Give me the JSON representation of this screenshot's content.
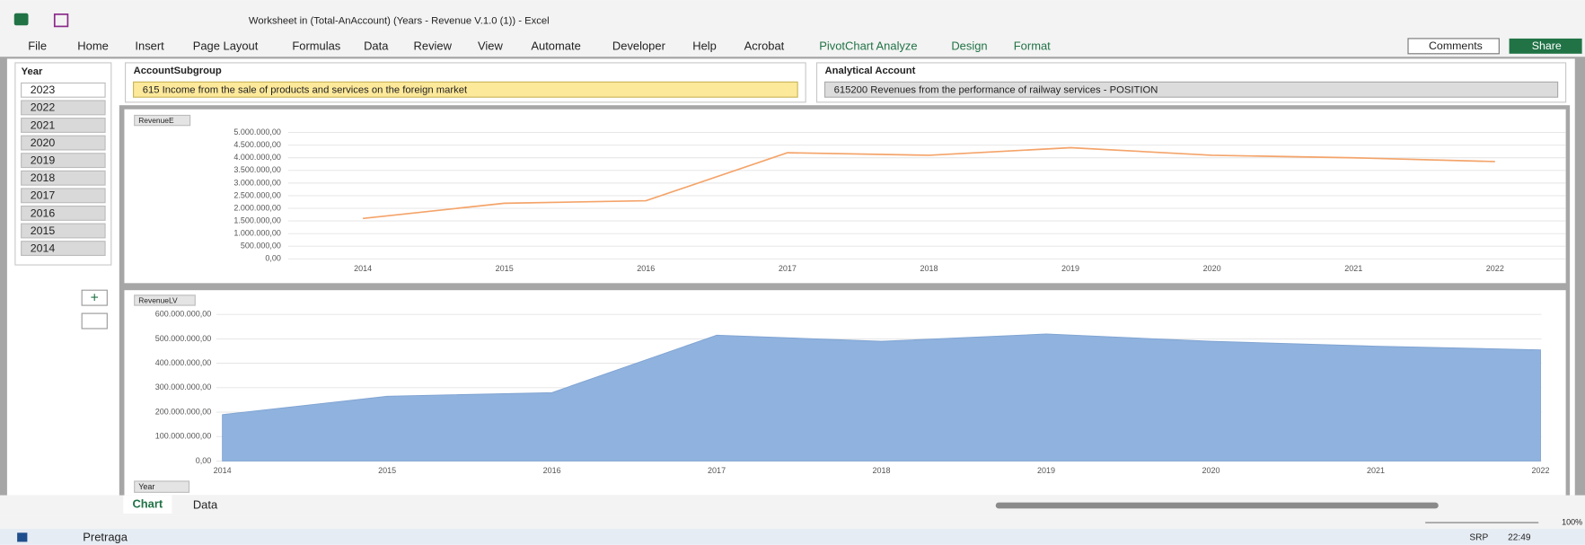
{
  "window": {
    "title": "Worksheet in (Total-AnAccount) (Years - Revenue V.1.0 (1))  -  Excel"
  },
  "ribbon_tabs": [
    "File",
    "Home",
    "Insert",
    "Page Layout",
    "Formulas",
    "Data",
    "Review",
    "View",
    "Automate",
    "Developer",
    "Help",
    "Acrobat",
    "PivotChart Analyze",
    "Design",
    "Format"
  ],
  "ribbon_buttons": {
    "comments": "Comments",
    "share": "Share"
  },
  "slicers": [
    {
      "title": "Year",
      "items": [
        "2023",
        "2022",
        "2021",
        "2020",
        "2019",
        "2018",
        "2017",
        "2016",
        "2015",
        "2014"
      ]
    },
    {
      "title": "AccountSubgroup",
      "items": [
        "615 Income from the sale of products and services on the foreign market"
      ]
    },
    {
      "title": "Analytical Account",
      "items": [
        "615200 Revenues from the performance of railway services - POSITION"
      ]
    }
  ],
  "charts": [
    {
      "type": "line",
      "title": "RevenueE",
      "color": "#f4a46a",
      "grid": true,
      "categories": [
        "2014",
        "2015",
        "2016",
        "2017",
        "2018",
        "2019",
        "2020",
        "2021",
        "2022"
      ],
      "values": [
        1600000,
        2200000,
        2300000,
        4200000,
        4100000,
        4400000,
        4100000,
        4000000,
        3850000
      ],
      "ylim": [
        0,
        5000000
      ],
      "yticks": [
        {
          "value": 0,
          "label": "0,00"
        },
        {
          "value": 500000,
          "label": "500.000,00"
        },
        {
          "value": 1000000,
          "label": "1.000.000,00"
        },
        {
          "value": 1500000,
          "label": "1.500.000,00"
        },
        {
          "value": 2000000,
          "label": "2.000.000,00"
        },
        {
          "value": 2500000,
          "label": "2.500.000,00"
        },
        {
          "value": 3000000,
          "label": "3.000.000,00"
        },
        {
          "value": 3500000,
          "label": "3.500.000,00"
        },
        {
          "value": 4000000,
          "label": "4.000.000,00"
        },
        {
          "value": 4500000,
          "label": "4.500.000,00"
        },
        {
          "value": 5000000,
          "label": "5.000.000,00"
        }
      ]
    },
    {
      "type": "area",
      "title": "RevenueLV",
      "color": "#8fb2de",
      "grid": true,
      "field_button": "Year",
      "categories": [
        "2014",
        "2015",
        "2016",
        "2017",
        "2018",
        "2019",
        "2020",
        "2021",
        "2022"
      ],
      "values": [
        190000000,
        265000000,
        280000000,
        515000000,
        490000000,
        520000000,
        490000000,
        470000000,
        455000000
      ],
      "ylim": [
        0,
        600000000
      ],
      "yticks": [
        {
          "value": 0,
          "label": "0,00"
        },
        {
          "value": 100000000,
          "label": "100.000.000,00"
        },
        {
          "value": 200000000,
          "label": "200.000.000,00"
        },
        {
          "value": 300000000,
          "label": "300.000.000,00"
        },
        {
          "value": 400000000,
          "label": "400.000.000,00"
        },
        {
          "value": 500000000,
          "label": "500.000.000,00"
        },
        {
          "value": 600000000,
          "label": "600.000.000,00"
        }
      ]
    }
  ],
  "sheet_tabs": [
    "Chart",
    "Data"
  ],
  "taskbar": {
    "search": "Pretraga",
    "language": "SRP",
    "time": "22:49"
  },
  "zoom": "100%"
}
